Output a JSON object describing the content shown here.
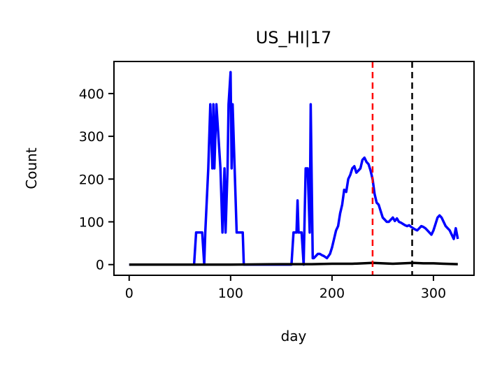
{
  "chart_data": {
    "type": "line",
    "title": "US_HI|17",
    "xlabel": "day",
    "ylabel": "Count",
    "xlim": [
      -15,
      340
    ],
    "ylim": [
      -25,
      475
    ],
    "xticks": [
      0,
      100,
      200,
      300
    ],
    "yticks": [
      0,
      100,
      200,
      300,
      400
    ],
    "grid": false,
    "vlines": [
      {
        "x": 240,
        "color": "#ff0000",
        "style": "dashed"
      },
      {
        "x": 279,
        "color": "#000000",
        "style": "dashed"
      }
    ],
    "series": [
      {
        "color": "#0000ff",
        "x": [
          0,
          64,
          66,
          70,
          72,
          74,
          75,
          78,
          80,
          82,
          83,
          84,
          86,
          88,
          90,
          92,
          94,
          95,
          97,
          98,
          100,
          101,
          102,
          104,
          106,
          107,
          108,
          112,
          113,
          160,
          162,
          165,
          166,
          167,
          168,
          170,
          172,
          174,
          175,
          176,
          178,
          179,
          181,
          182,
          184,
          186,
          188,
          190,
          192,
          195,
          198,
          200,
          202,
          204,
          206,
          208,
          210,
          212,
          214,
          216,
          218,
          220,
          222,
          224,
          226,
          228,
          230,
          232,
          234,
          236,
          238,
          240,
          242,
          244,
          246,
          248,
          250,
          252,
          254,
          256,
          258,
          260,
          262,
          264,
          266,
          268,
          270,
          272,
          274,
          276,
          278,
          280,
          282,
          284,
          286,
          288,
          290,
          292,
          294,
          296,
          298,
          300,
          302,
          304,
          306,
          308,
          310,
          312,
          314,
          316,
          318,
          320,
          322,
          324
        ],
        "y": [
          0,
          0,
          75,
          75,
          75,
          0,
          75,
          225,
          375,
          225,
          375,
          225,
          375,
          300,
          225,
          75,
          225,
          75,
          225,
          375,
          450,
          225,
          375,
          225,
          75,
          75,
          75,
          75,
          0,
          0,
          75,
          75,
          150,
          75,
          75,
          75,
          0,
          225,
          225,
          225,
          75,
          375,
          15,
          15,
          20,
          25,
          25,
          22,
          20,
          15,
          25,
          40,
          60,
          80,
          90,
          120,
          140,
          175,
          170,
          200,
          210,
          225,
          230,
          215,
          220,
          225,
          245,
          250,
          240,
          235,
          220,
          200,
          165,
          145,
          140,
          125,
          110,
          105,
          100,
          100,
          105,
          110,
          102,
          108,
          100,
          98,
          95,
          92,
          90,
          92,
          88,
          85,
          82,
          80,
          85,
          90,
          88,
          85,
          80,
          75,
          70,
          80,
          95,
          110,
          115,
          110,
          100,
          90,
          85,
          80,
          70,
          60,
          85,
          60
        ]
      },
      {
        "color": "#000000",
        "x": [
          0,
          50,
          100,
          150,
          180,
          200,
          220,
          240,
          250,
          260,
          270,
          280,
          290,
          300,
          310,
          324
        ],
        "y": [
          0,
          0,
          0,
          1,
          1,
          2,
          2,
          4,
          3,
          2,
          3,
          4,
          3,
          3,
          2,
          1
        ]
      }
    ]
  }
}
